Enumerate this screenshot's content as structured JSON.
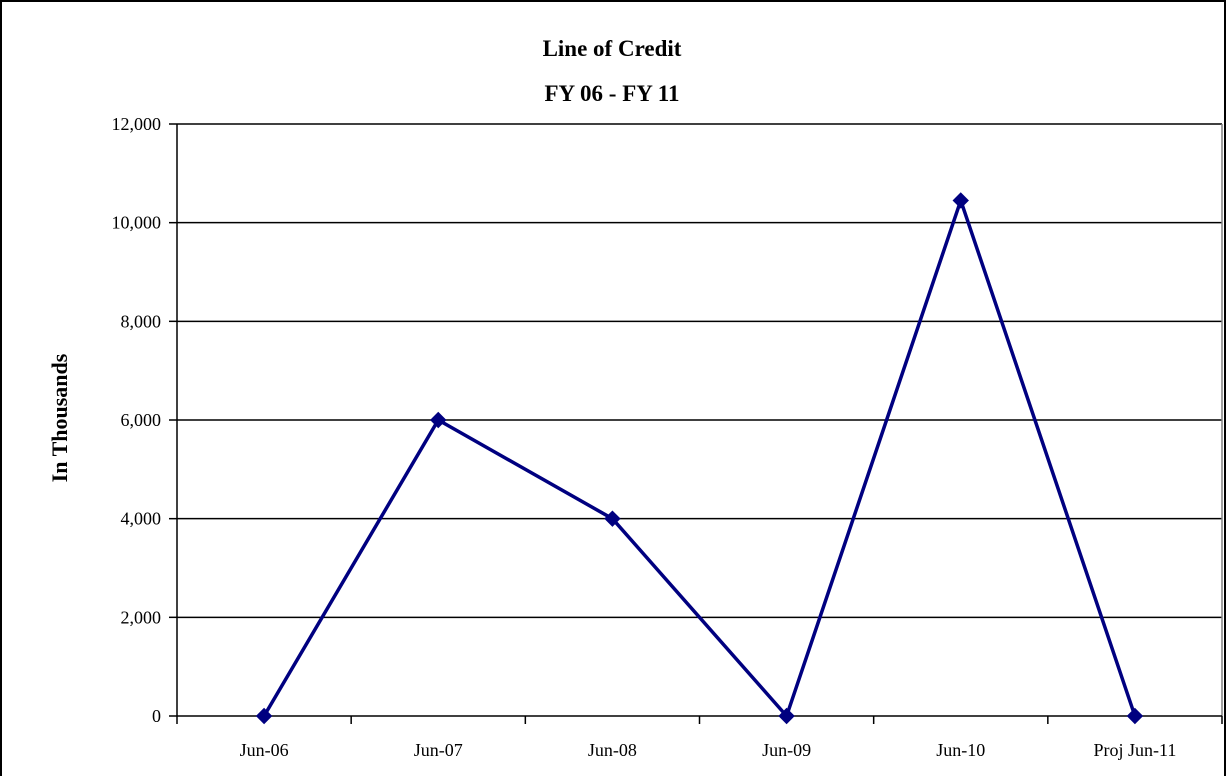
{
  "chart_data": {
    "type": "line",
    "title": "Line of Credit",
    "subtitle": "FY 06 - FY 11",
    "xlabel": "",
    "ylabel": "In Thousands",
    "categories": [
      "Jun-06",
      "Jun-07",
      "Jun-08",
      "Jun-09",
      "Jun-10",
      "Proj Jun-11"
    ],
    "series": [
      {
        "values": [
          0,
          6000,
          4000,
          0,
          10450,
          0
        ],
        "color": "#000080",
        "marker": "diamond"
      }
    ],
    "ylim": [
      0,
      12000
    ],
    "yticks": [
      0,
      2000,
      4000,
      6000,
      8000,
      10000,
      12000
    ],
    "ytick_labels": [
      "0",
      "2,000",
      "4,000",
      "6,000",
      "8,000",
      "10,000",
      "12,000"
    ],
    "grid": "horizontal",
    "legend": "none"
  }
}
